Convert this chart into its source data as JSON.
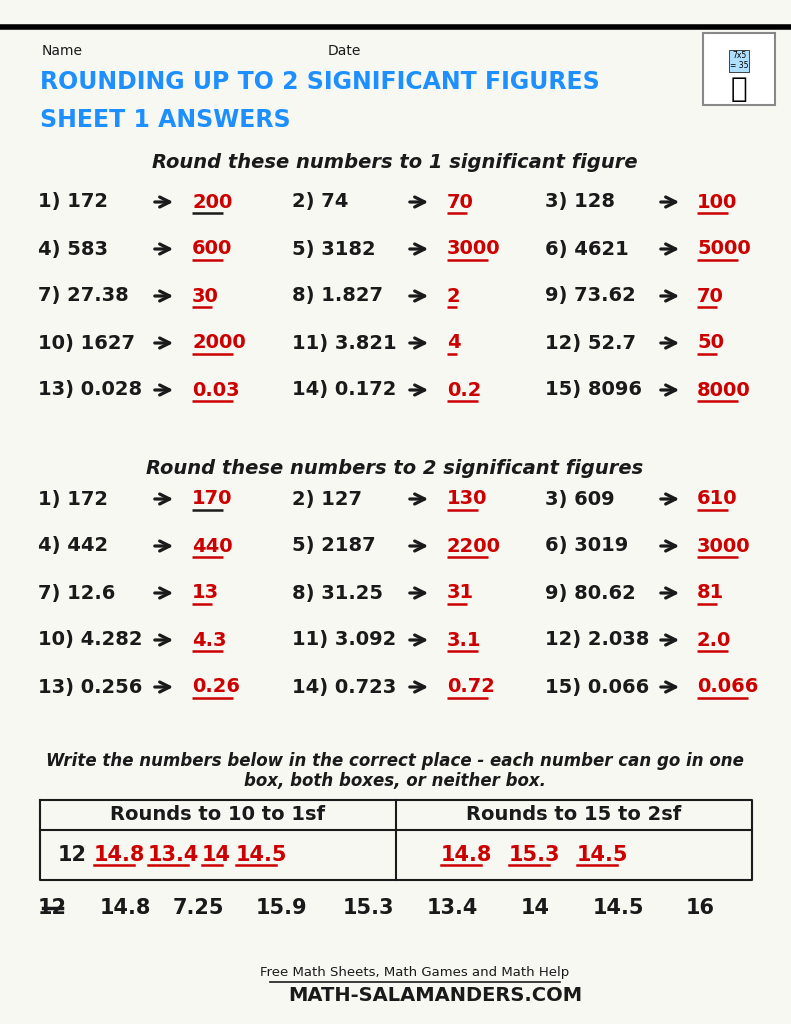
{
  "bg_color": "#f8f8f3",
  "title_color": "#1e8fff",
  "answer_color": "#cc0000",
  "black_color": "#1a1a1a",
  "section1_title": "Round these numbers to 1 significant figure",
  "section2_title": "Round these numbers to 2 significant figures",
  "section3_line1": "Write the numbers below in the correct place - each number can go in one",
  "section3_line2": "box, both boxes, or neither box.",
  "rows_1sf": [
    [
      [
        "1) 172",
        "200",
        true
      ],
      [
        "2) 74",
        "70",
        false
      ],
      [
        "3) 128",
        "100",
        false
      ]
    ],
    [
      [
        "4) 583",
        "600",
        false
      ],
      [
        "5) 3182",
        "3000",
        false
      ],
      [
        "6) 4621",
        "5000",
        false
      ]
    ],
    [
      [
        "7) 27.38",
        "30",
        false
      ],
      [
        "8) 1.827",
        "2",
        false
      ],
      [
        "9) 73.62",
        "70",
        false
      ]
    ],
    [
      [
        "10) 1627",
        "2000",
        false
      ],
      [
        "11) 3.821",
        "4",
        false
      ],
      [
        "12) 52.7",
        "50",
        false
      ]
    ],
    [
      [
        "13) 0.028",
        "0.03",
        false
      ],
      [
        "14) 0.172",
        "0.2",
        false
      ],
      [
        "15) 8096",
        "8000",
        false
      ]
    ]
  ],
  "rows_2sf": [
    [
      [
        "1) 172",
        "170",
        true
      ],
      [
        "2) 127",
        "130",
        false
      ],
      [
        "3) 609",
        "610",
        false
      ]
    ],
    [
      [
        "4) 442",
        "440",
        false
      ],
      [
        "5) 2187",
        "2200",
        false
      ],
      [
        "6) 3019",
        "3000",
        false
      ]
    ],
    [
      [
        "7) 12.6",
        "13",
        false
      ],
      [
        "8) 31.25",
        "31",
        false
      ],
      [
        "9) 80.62",
        "81",
        false
      ]
    ],
    [
      [
        "10) 4.282",
        "4.3",
        false
      ],
      [
        "11) 3.092",
        "3.1",
        false
      ],
      [
        "12) 2.038",
        "2.0",
        false
      ]
    ],
    [
      [
        "13) 0.256",
        "0.26",
        false
      ],
      [
        "14) 0.723",
        "0.72",
        false
      ],
      [
        "15) 0.066",
        "0.066",
        false
      ]
    ]
  ],
  "box_col1_header": "Rounds to 10 to 1sf",
  "box_col2_header": "Rounds to 15 to 2sf",
  "box_col1_black": "12",
  "box_col1_red": [
    "14.8",
    "13.4",
    "14",
    "14.5"
  ],
  "box_col2_red": [
    "14.8",
    "15.3",
    "14.5"
  ],
  "numbers_row": [
    "12",
    "14.8",
    "7.25",
    "15.9",
    "15.3",
    "13.4",
    "14",
    "14.5",
    "16"
  ],
  "strikethrough": [
    "12"
  ],
  "footer_text": "Free Math Sheets, Math Games and Math Help",
  "footer_site": "ATH-SALAMANDERS.COM"
}
